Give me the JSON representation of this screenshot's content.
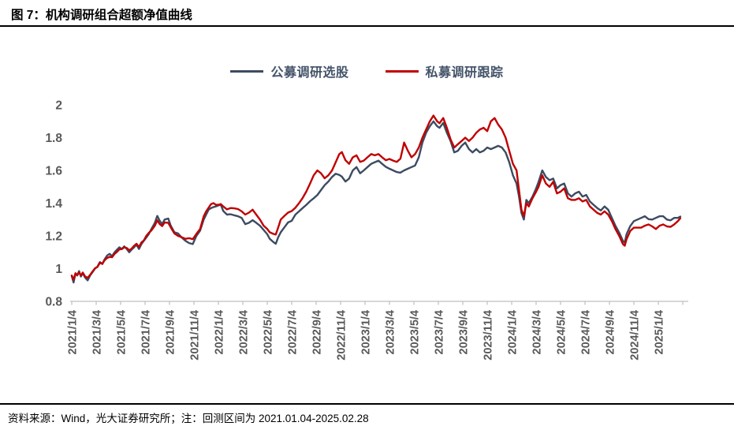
{
  "title": "图 7：机构调研组合超额净值曲线",
  "source_note": {
    "text": "资料来源：Wind，光大证券研究所；注：回测区间为 2021.01.04-2025.02.28"
  },
  "colors": {
    "series_public": "#3C4B61",
    "series_private": "#C00000",
    "axis": "#BFBFBF",
    "tick_text": "#595959",
    "legend_text": "#44546A",
    "rule": "#000000"
  },
  "chart_data": {
    "type": "line",
    "title": "",
    "xlabel": "",
    "ylabel": "",
    "grid": false,
    "legend_position": "top-center",
    "ylim": [
      0.8,
      2.0
    ],
    "x_unit": "months since 2021/1/4",
    "x_label_rotation": -90,
    "y_ticks": [
      {
        "label": "2",
        "value": 2.0
      },
      {
        "label": "1.8",
        "value": 1.8
      },
      {
        "label": "1.6",
        "value": 1.6
      },
      {
        "label": "1.4",
        "value": 1.4
      },
      {
        "label": "1.2",
        "value": 1.2
      },
      {
        "label": "1",
        "value": 1.0
      },
      {
        "label": "0.8",
        "value": 0.8
      }
    ],
    "x_tick_labels": [
      "2021/1/4",
      "2021/3/4",
      "2021/5/4",
      "2021/7/4",
      "2021/9/4",
      "2021/11/4",
      "2022/1/4",
      "2022/3/4",
      "2022/5/4",
      "2022/7/4",
      "2022/9/4",
      "2022/11/4",
      "2023/1/4",
      "2023/3/4",
      "2023/5/4",
      "2023/7/4",
      "2023/9/4",
      "2023/11/4",
      "2024/1/4",
      "2024/3/4",
      "2024/5/4",
      "2024/7/4",
      "2024/9/4",
      "2024/11/4",
      "2025/1/4"
    ],
    "x_tick_month_index": [
      0,
      2,
      4,
      6,
      8,
      10,
      12,
      14,
      16,
      18,
      20,
      22,
      24,
      26,
      28,
      30,
      32,
      34,
      36,
      38,
      40,
      42,
      44,
      46,
      48
    ],
    "x": [
      0,
      0.15,
      0.3,
      0.45,
      0.6,
      0.75,
      0.9,
      1.1,
      1.3,
      1.5,
      1.7,
      1.9,
      2.1,
      2.3,
      2.5,
      2.7,
      2.9,
      3.1,
      3.3,
      3.5,
      3.7,
      3.9,
      4.1,
      4.3,
      4.5,
      4.7,
      4.9,
      5.1,
      5.3,
      5.5,
      5.7,
      5.9,
      6.1,
      6.3,
      6.5,
      6.8,
      7.0,
      7.2,
      7.4,
      7.6,
      7.9,
      8.1,
      8.4,
      8.7,
      9.0,
      9.3,
      9.6,
      9.9,
      10.2,
      10.5,
      10.8,
      11.0,
      11.2,
      11.4,
      11.6,
      11.8,
      12.0,
      12.2,
      12.4,
      12.7,
      13.0,
      13.3,
      13.6,
      13.9,
      14.2,
      14.5,
      14.8,
      15.1,
      15.4,
      15.7,
      16.0,
      16.2,
      16.5,
      16.7,
      16.9,
      17.1,
      17.4,
      17.7,
      18.0,
      18.3,
      18.6,
      18.9,
      19.2,
      19.5,
      19.8,
      20.1,
      20.4,
      20.7,
      21.0,
      21.3,
      21.6,
      21.9,
      22.1,
      22.4,
      22.7,
      23.0,
      23.3,
      23.6,
      23.9,
      24.2,
      24.5,
      24.8,
      25.1,
      25.4,
      25.7,
      26.0,
      26.3,
      26.6,
      26.9,
      27.2,
      27.5,
      27.8,
      28.1,
      28.4,
      28.7,
      29.0,
      29.3,
      29.6,
      29.9,
      30.1,
      30.4,
      30.7,
      31.0,
      31.3,
      31.6,
      31.9,
      32.2,
      32.5,
      32.8,
      33.1,
      33.4,
      33.7,
      34.0,
      34.3,
      34.6,
      34.9,
      35.2,
      35.5,
      35.8,
      36.1,
      36.4,
      36.6,
      36.8,
      37.0,
      37.2,
      37.4,
      37.7,
      38.0,
      38.2,
      38.5,
      38.8,
      39.1,
      39.4,
      39.7,
      40.0,
      40.3,
      40.6,
      40.9,
      41.2,
      41.5,
      41.8,
      42.1,
      42.4,
      42.7,
      43.0,
      43.3,
      43.6,
      43.9,
      44.2,
      44.5,
      44.8,
      45.1,
      45.25,
      45.4,
      45.7,
      46.0,
      46.3,
      46.6,
      46.9,
      47.2,
      47.5,
      47.8,
      48.1,
      48.4,
      48.7,
      49.0,
      49.3,
      49.6,
      49.8
    ],
    "series": [
      {
        "name": "公募调研选股",
        "color": "#3C4B61",
        "values": [
          0.955,
          0.915,
          0.968,
          0.958,
          0.985,
          0.952,
          0.972,
          0.945,
          0.928,
          0.958,
          0.978,
          1.0,
          1.012,
          1.04,
          1.028,
          1.058,
          1.08,
          1.09,
          1.076,
          1.1,
          1.115,
          1.13,
          1.12,
          1.136,
          1.12,
          1.1,
          1.116,
          1.13,
          1.146,
          1.12,
          1.15,
          1.17,
          1.19,
          1.21,
          1.24,
          1.28,
          1.322,
          1.292,
          1.272,
          1.3,
          1.306,
          1.262,
          1.222,
          1.215,
          1.19,
          1.17,
          1.156,
          1.15,
          1.2,
          1.232,
          1.3,
          1.33,
          1.36,
          1.37,
          1.376,
          1.38,
          1.386,
          1.39,
          1.352,
          1.33,
          1.332,
          1.326,
          1.32,
          1.31,
          1.272,
          1.28,
          1.296,
          1.28,
          1.262,
          1.236,
          1.21,
          1.182,
          1.162,
          1.152,
          1.192,
          1.222,
          1.252,
          1.282,
          1.292,
          1.33,
          1.35,
          1.37,
          1.39,
          1.412,
          1.43,
          1.45,
          1.48,
          1.51,
          1.532,
          1.56,
          1.58,
          1.572,
          1.562,
          1.532,
          1.55,
          1.6,
          1.62,
          1.582,
          1.6,
          1.62,
          1.64,
          1.65,
          1.66,
          1.64,
          1.622,
          1.61,
          1.6,
          1.59,
          1.586,
          1.6,
          1.61,
          1.62,
          1.63,
          1.68,
          1.77,
          1.83,
          1.87,
          1.9,
          1.87,
          1.86,
          1.89,
          1.83,
          1.78,
          1.71,
          1.72,
          1.75,
          1.77,
          1.73,
          1.71,
          1.73,
          1.71,
          1.72,
          1.74,
          1.73,
          1.74,
          1.75,
          1.74,
          1.71,
          1.65,
          1.57,
          1.52,
          1.44,
          1.34,
          1.3,
          1.42,
          1.4,
          1.44,
          1.49,
          1.53,
          1.6,
          1.56,
          1.54,
          1.55,
          1.49,
          1.51,
          1.52,
          1.46,
          1.44,
          1.46,
          1.47,
          1.44,
          1.45,
          1.41,
          1.39,
          1.37,
          1.355,
          1.38,
          1.36,
          1.31,
          1.26,
          1.22,
          1.17,
          1.158,
          1.21,
          1.26,
          1.29,
          1.3,
          1.31,
          1.32,
          1.302,
          1.3,
          1.31,
          1.32,
          1.32,
          1.3,
          1.295,
          1.31,
          1.31,
          1.318
        ]
      },
      {
        "name": "私募调研跟踪",
        "color": "#C00000",
        "values": [
          0.958,
          0.932,
          0.972,
          0.962,
          0.975,
          0.958,
          0.976,
          0.952,
          0.944,
          0.962,
          0.982,
          1.002,
          1.01,
          1.035,
          1.03,
          1.052,
          1.065,
          1.072,
          1.07,
          1.09,
          1.102,
          1.117,
          1.12,
          1.13,
          1.126,
          1.112,
          1.122,
          1.14,
          1.152,
          1.132,
          1.16,
          1.172,
          1.2,
          1.218,
          1.232,
          1.262,
          1.295,
          1.272,
          1.26,
          1.282,
          1.28,
          1.252,
          1.215,
          1.2,
          1.192,
          1.182,
          1.186,
          1.18,
          1.212,
          1.242,
          1.32,
          1.35,
          1.372,
          1.394,
          1.4,
          1.39,
          1.39,
          1.394,
          1.38,
          1.362,
          1.37,
          1.368,
          1.364,
          1.35,
          1.33,
          1.342,
          1.36,
          1.33,
          1.3,
          1.262,
          1.242,
          1.222,
          1.212,
          1.208,
          1.252,
          1.3,
          1.322,
          1.342,
          1.352,
          1.372,
          1.4,
          1.432,
          1.472,
          1.52,
          1.57,
          1.6,
          1.582,
          1.552,
          1.57,
          1.6,
          1.65,
          1.7,
          1.712,
          1.662,
          1.64,
          1.68,
          1.692,
          1.652,
          1.66,
          1.68,
          1.7,
          1.692,
          1.7,
          1.68,
          1.662,
          1.67,
          1.66,
          1.652,
          1.672,
          1.77,
          1.72,
          1.68,
          1.7,
          1.74,
          1.8,
          1.85,
          1.9,
          1.935,
          1.9,
          1.888,
          1.92,
          1.86,
          1.79,
          1.74,
          1.76,
          1.78,
          1.8,
          1.78,
          1.8,
          1.83,
          1.85,
          1.86,
          1.84,
          1.9,
          1.92,
          1.88,
          1.85,
          1.8,
          1.72,
          1.64,
          1.6,
          1.48,
          1.36,
          1.32,
          1.4,
          1.38,
          1.43,
          1.47,
          1.5,
          1.57,
          1.52,
          1.5,
          1.53,
          1.46,
          1.47,
          1.49,
          1.43,
          1.42,
          1.42,
          1.43,
          1.41,
          1.42,
          1.38,
          1.36,
          1.34,
          1.33,
          1.35,
          1.33,
          1.29,
          1.24,
          1.2,
          1.15,
          1.14,
          1.18,
          1.23,
          1.25,
          1.25,
          1.25,
          1.262,
          1.27,
          1.258,
          1.242,
          1.262,
          1.27,
          1.258,
          1.255,
          1.27,
          1.29,
          1.308
        ]
      }
    ]
  }
}
